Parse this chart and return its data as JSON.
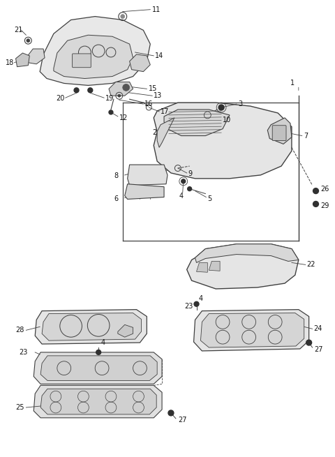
{
  "bg_color": "#ffffff",
  "line_color": "#404040",
  "fig_w": 4.8,
  "fig_h": 6.55,
  "dpi": 100
}
